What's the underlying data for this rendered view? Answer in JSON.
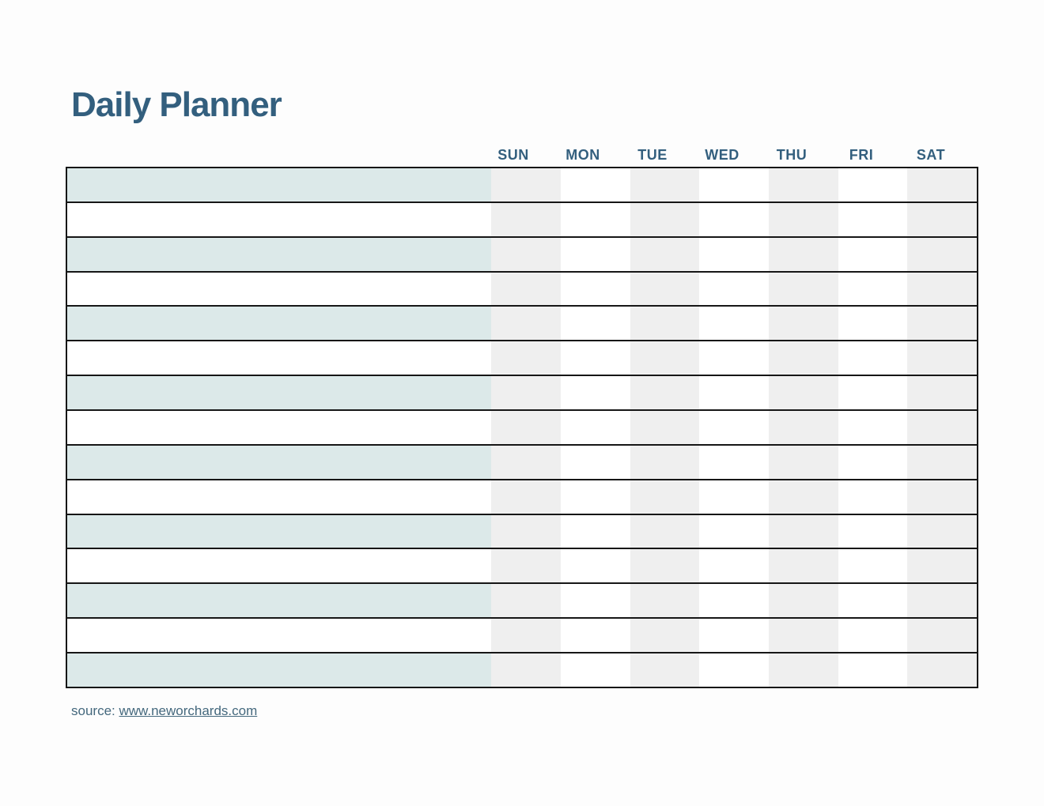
{
  "document": {
    "title": "Daily Planner",
    "source": {
      "label": "source: ",
      "link_text": "www.neworchards.com"
    }
  },
  "planner": {
    "day_headers": [
      "SUN",
      "MON",
      "TUE",
      "WED",
      "THU",
      "FRI",
      "SAT"
    ],
    "row_count": 15,
    "shaded_day_columns": [
      "SUN",
      "TUE",
      "THU",
      "SAT"
    ],
    "tinted_rows": "odd rows 1,3,5,7,9,11,13,15 (left section)"
  },
  "colors": {
    "heading_text": "#335f7e",
    "row_tint": "#dce9e9",
    "day_column_shade": "#efefef",
    "grid_line": "#161616",
    "source_text": "#44687d",
    "page_background": "#fdfdfd"
  }
}
